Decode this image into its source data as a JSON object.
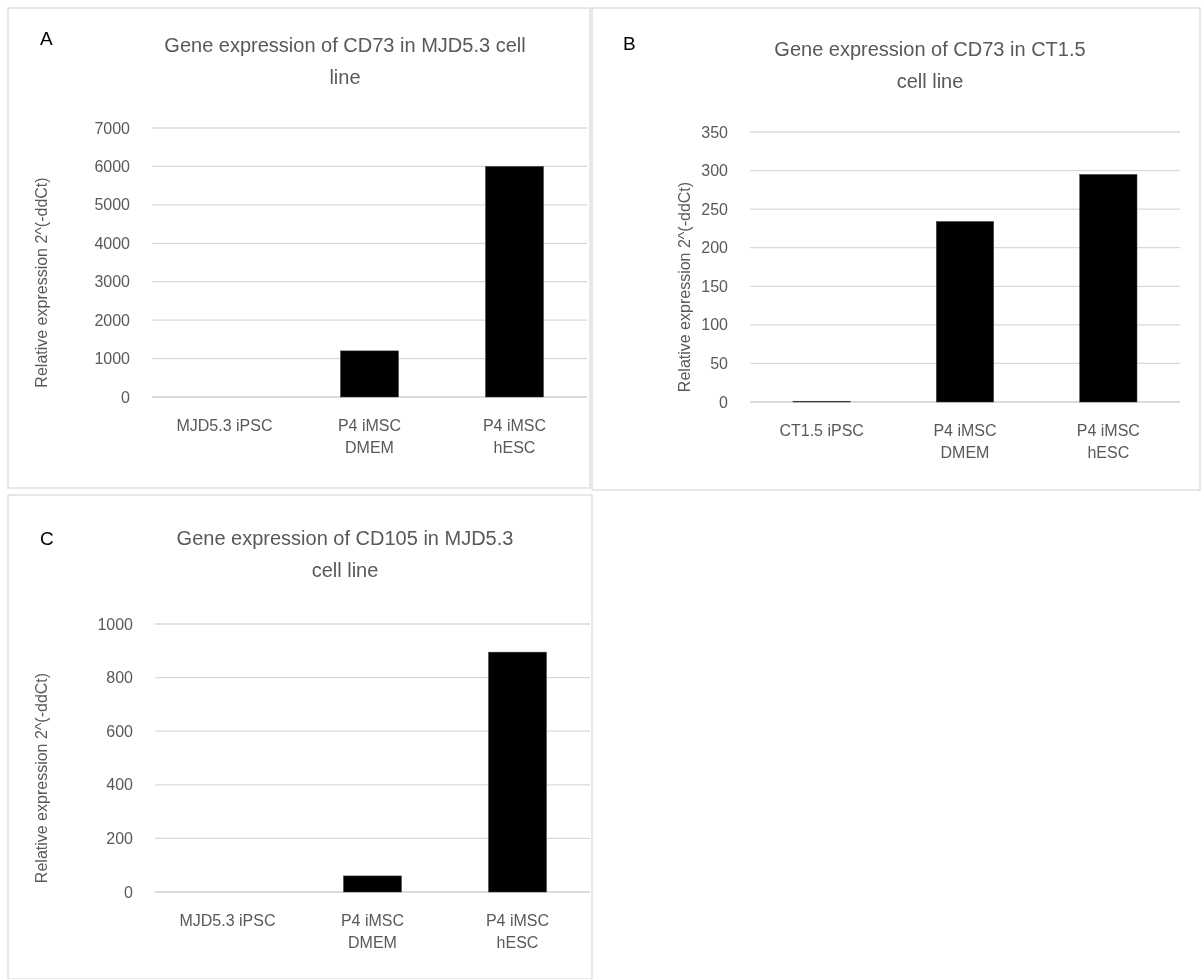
{
  "chart_data": [
    {
      "type": "bar",
      "title": "Gene expression of CD73 in MJD5.3 cell line",
      "ylabel": "Relative expression 2^(-ddCt)",
      "annotations": [
        "A"
      ],
      "categories": [
        "MJD5.3 iPSC",
        "P4 iMSC DMEM",
        "P4 iMSC hESC"
      ],
      "values": [
        null,
        1200,
        6000
      ],
      "color": "#000000",
      "ylim": [
        0,
        7000
      ],
      "yticks": [
        0,
        1000,
        2000,
        3000,
        4000,
        5000,
        6000,
        7000
      ],
      "grid": "y"
    },
    {
      "type": "bar",
      "title": "Gene expression of CD73 in CT1.5 cell line",
      "ylabel": "Relative expression 2^(-ddCt)",
      "annotations": [
        "B"
      ],
      "categories": [
        "CT1.5 iPSC",
        "P4 iMSC DMEM",
        "P4 iMSC hESC"
      ],
      "values": [
        1,
        234,
        295
      ],
      "color": "#000000",
      "ylim": [
        0,
        350
      ],
      "yticks": [
        0,
        50,
        100,
        150,
        200,
        250,
        300,
        350
      ],
      "grid": "y"
    },
    {
      "type": "bar",
      "title": "Gene expression of CD105 in MJD5.3 cell line",
      "ylabel": "Relative expression 2^(-ddCt)",
      "annotations": [
        "C"
      ],
      "categories": [
        "MJD5.3 iPSC",
        "P4 iMSC DMEM",
        "P4 iMSC hESC"
      ],
      "values": [
        null,
        60,
        895
      ],
      "color": "#000000",
      "ylim": [
        0,
        1000
      ],
      "yticks": [
        0,
        200,
        400,
        600,
        800,
        1000
      ],
      "grid": "y"
    }
  ]
}
